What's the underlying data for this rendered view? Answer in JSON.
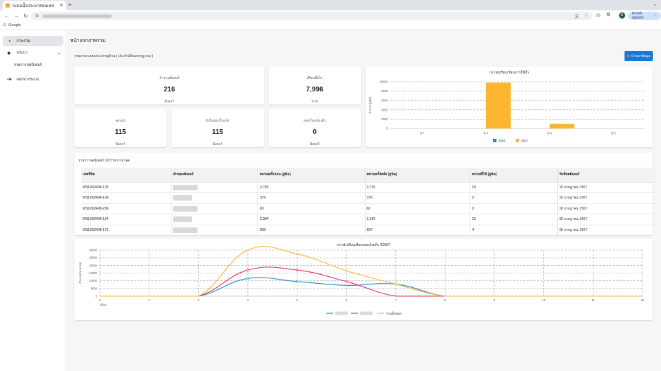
{
  "browser": {
    "tab_title": "ระบบน้ำประปาคอนเลห",
    "bookmark": "Google",
    "finish_update": "Finish update",
    "profile_initial": "G"
  },
  "sidebar": {
    "items": [
      {
        "label": "ภาพรวม",
        "icon": "pie-chart-icon"
      },
      {
        "label": "ประปา",
        "icon": "water-drop-icon"
      },
      {
        "label": "รายการจดมิเตอร์",
        "icon": ""
      },
      {
        "label": "ออกจากระบบ",
        "icon": "logout-icon"
      }
    ]
  },
  "main": {
    "page_title": "หน้าแรกภาพรวม",
    "subtitle": "รายงานระบบประปาหมู่บ้าน ( ประจำเดือนกรกฎาคม )",
    "export_label": "นำออกข้อมูล"
  },
  "stats": {
    "meter_total": {
      "label": "จำนวนมิเตอร์",
      "value": "216",
      "unit": "มิเตอร์"
    },
    "monthly": {
      "label": "เดือนนี้เก็บ",
      "value": "7,996",
      "unit": "บาท"
    },
    "recorded": {
      "label": "จดแล้ว",
      "value": "115",
      "unit": "มิเตอร์"
    },
    "unbilled": {
      "label": "ยังไม่ออกใบแจ้ง",
      "value": "115",
      "unit": "มิเตอร์"
    },
    "billed": {
      "label": "ออกใบแจ้งแล้ว",
      "value": "0",
      "unit": "มิเตอร์"
    }
  },
  "table": {
    "title": "รายการจดมิเตอร์ 10 รายการล่าสุด",
    "headers": [
      "เลขที่บิล",
      "เจ้าของมิเตอร์",
      "หน่วยครั้งก่อน (ยูนิต)",
      "หน่วยครั้งหลัง (ยูนิต)",
      "หน่วยที่ใช้ (ยูนิต)",
      "วันที่จดมิเตอร์"
    ],
    "rows": [
      [
        "WSL002408-125",
        "",
        "2,715",
        "2,725",
        "10",
        "10 กรกฎาคม 2567"
      ],
      [
        "WSL002408-106",
        "",
        "376",
        "376",
        "0",
        "10 กรกฎาคม 2567"
      ],
      [
        "WSL002408-206",
        "",
        "60",
        "60",
        "0",
        "10 กรกฎาคม 2567"
      ],
      [
        "WSL002408-124",
        "",
        "2,384",
        "2,399",
        "15",
        "10 กรกฎาคม 2567"
      ],
      [
        "WSL002408-175",
        "",
        "693",
        "697",
        "4",
        "10 กรกฎาคม 2567"
      ]
    ]
  },
  "colors": {
    "blue": "#1e88c7",
    "yellow": "#fbb52f",
    "red": "#e0314b",
    "accent": "#1976d2"
  },
  "chart_data": [
    {
      "type": "bar",
      "title": "กราฟเปรียบเทียบการใช้น้ำ",
      "categories": [
        "Q 1",
        "Q 2",
        "Q 3",
        "Q 4"
      ],
      "ylabel": "จำนวน (ยูนิต)",
      "ylim": [
        0,
        10000
      ],
      "yticks": [
        0,
        2000,
        4000,
        6000,
        8000,
        10000
      ],
      "series": [
        {
          "name": "2566",
          "values": [
            0,
            0,
            0,
            0
          ]
        },
        {
          "name": "2567",
          "values": [
            0,
            9800,
            1000,
            0
          ]
        }
      ]
    },
    {
      "type": "line",
      "title": "กราฟเปรียบเทียบยอดเงินเก็บ ปี2567",
      "x": [
        1,
        2,
        3,
        4,
        5,
        6,
        7,
        8,
        9,
        10,
        11,
        12
      ],
      "xlabel": "เดือน",
      "ylabel": "จำนวนเงิน (บาท)",
      "ylim": [
        0,
        30000
      ],
      "yticks": [
        0,
        5000,
        10000,
        15000,
        20000,
        25000,
        30000
      ],
      "series": [
        {
          "name": "",
          "values": [
            0,
            0,
            0,
            11500,
            9500,
            7000,
            7800,
            0,
            0,
            0,
            0,
            0
          ]
        },
        {
          "name": "",
          "values": [
            0,
            0,
            0,
            17000,
            17000,
            9500,
            0,
            0,
            0,
            0,
            0,
            0
          ]
        },
        {
          "name": "รวมทั้งหมด",
          "values": [
            0,
            0,
            0,
            30000,
            27500,
            16500,
            7800,
            0,
            0,
            0,
            0,
            0
          ]
        }
      ]
    }
  ]
}
